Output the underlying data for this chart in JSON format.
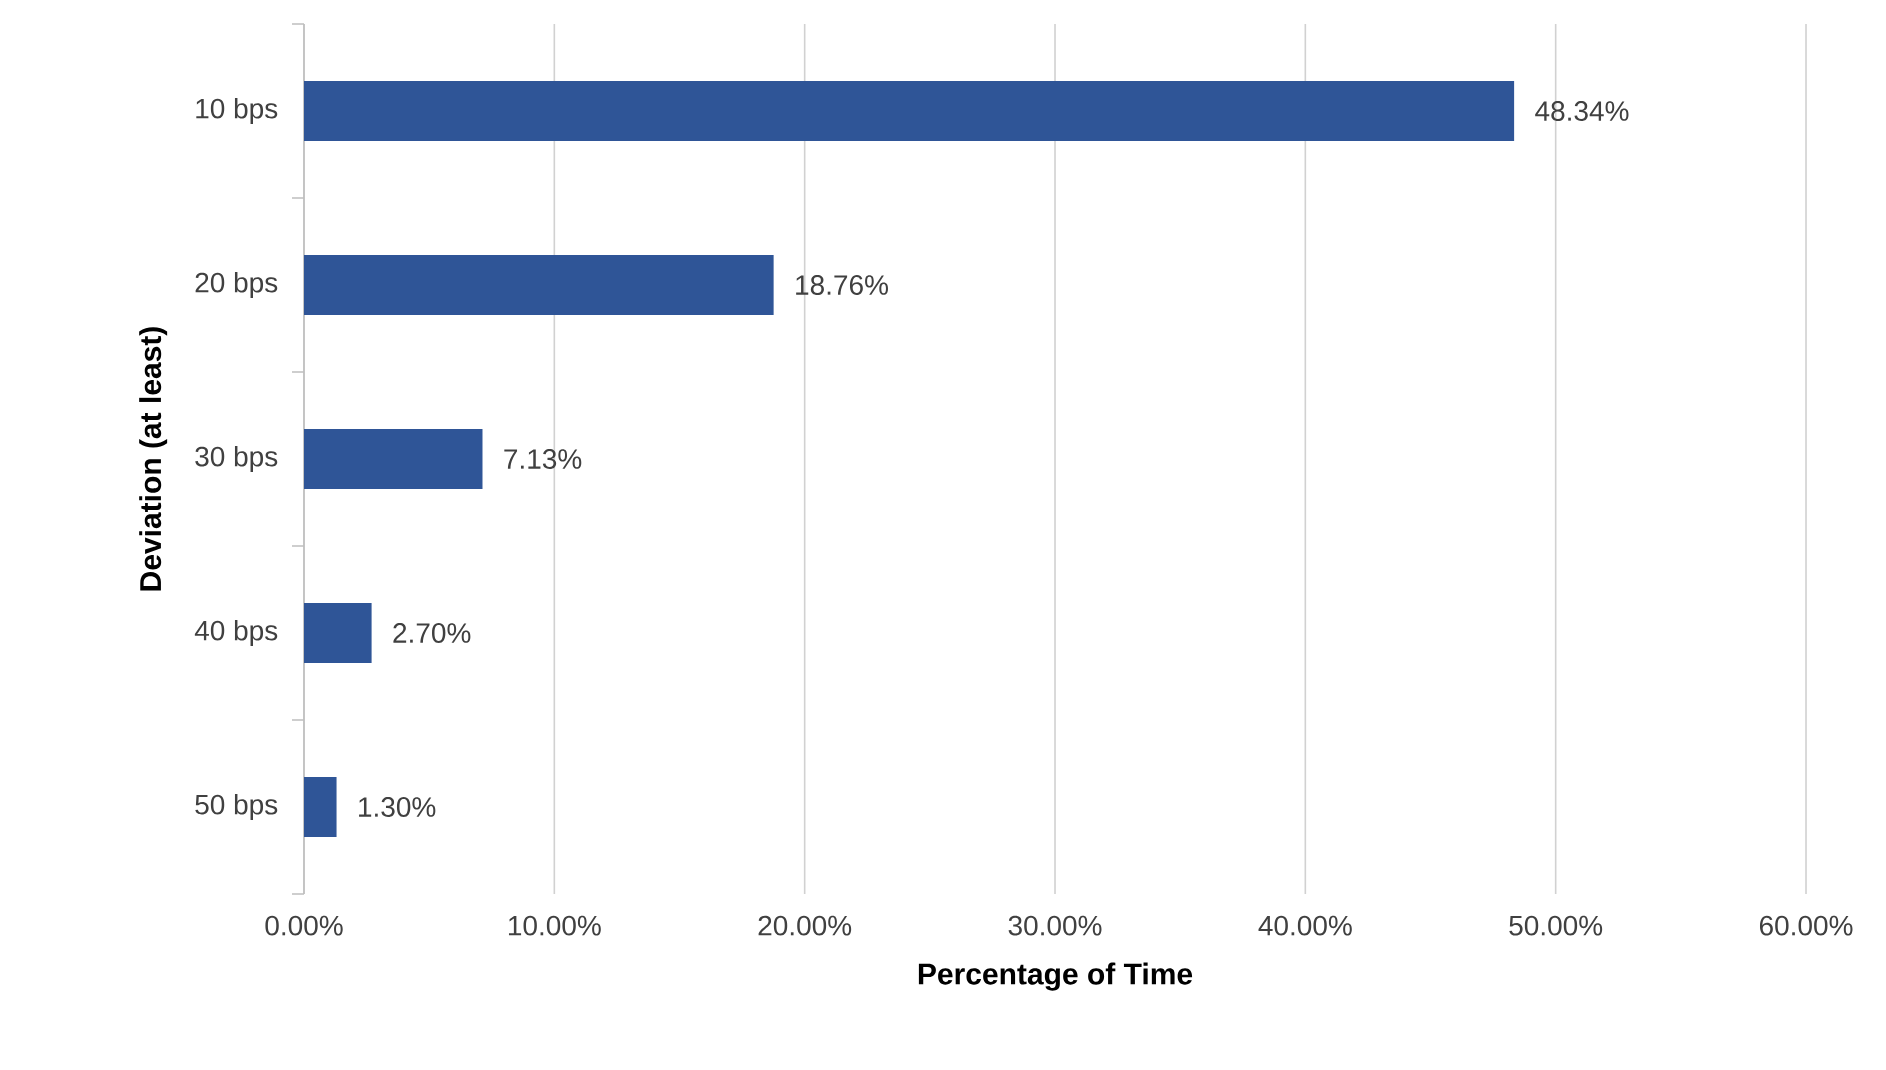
{
  "chart_data": {
    "type": "bar",
    "orientation": "horizontal",
    "xlabel": "Percentage of Time",
    "ylabel": "Deviation (at least)",
    "categories": [
      "10 bps",
      "20 bps",
      "30 bps",
      "40 bps",
      "50 bps"
    ],
    "values": [
      48.34,
      18.76,
      7.13,
      2.7,
      1.3
    ],
    "value_labels": [
      "48.34%",
      "18.76%",
      "7.13%",
      "2.70%",
      "1.30%"
    ],
    "color": "#2f5597",
    "xlim": [
      0,
      60
    ],
    "xticks": [
      {
        "value": 0,
        "label": "0.00%"
      },
      {
        "value": 10,
        "label": "10.00%"
      },
      {
        "value": 20,
        "label": "20.00%"
      },
      {
        "value": 30,
        "label": "30.00%"
      },
      {
        "value": 40,
        "label": "40.00%"
      },
      {
        "value": 50,
        "label": "50.00%"
      },
      {
        "value": 60,
        "label": "60.00%"
      }
    ],
    "grid": "x"
  }
}
